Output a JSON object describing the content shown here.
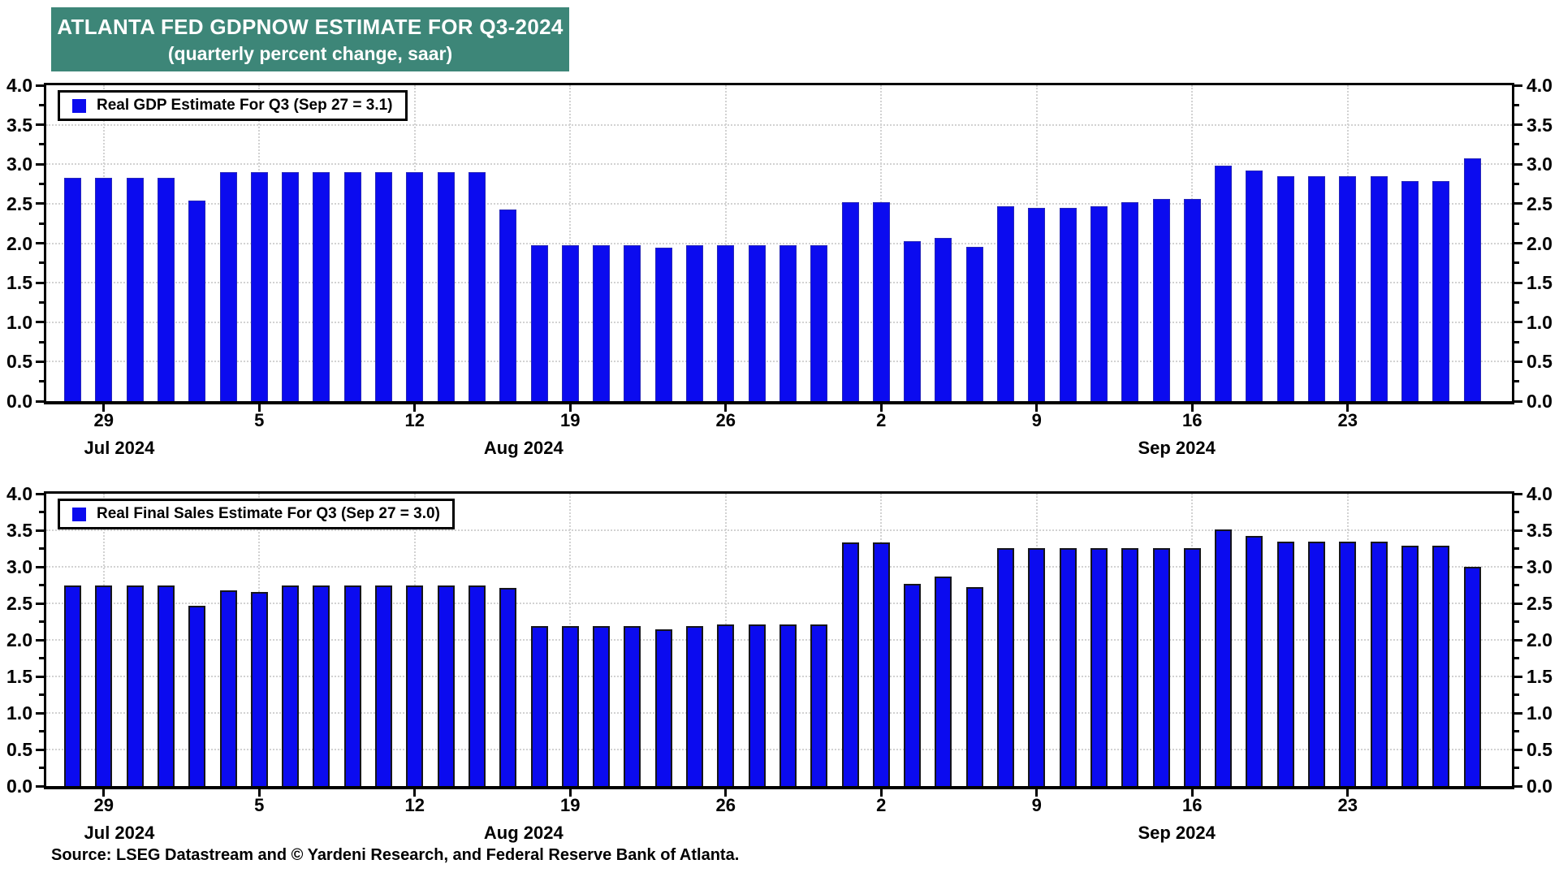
{
  "title": {
    "line1": "ATLANTA FED GDPNOW ESTIMATE FOR Q3-2024",
    "line2": "(quarterly percent change, saar)"
  },
  "source": "Source: LSEG Datastream and © Yardeni Research, and Federal Reserve Bank of Atlanta.",
  "colors": {
    "bar": "#0b0bef",
    "title_bg": "#3d8678",
    "grid": "#d2d2d2",
    "axis": "#000000"
  },
  "chart_data": [
    {
      "type": "bar",
      "title": "Real GDP Estimate For Q3 (Sep 27 = 3.1)",
      "ylim": [
        0.0,
        4.0
      ],
      "ytick_step": 0.5,
      "grid": true,
      "legend_position": "top-left",
      "y_tick_labels": [
        "0.0",
        "0.5",
        "1.0",
        "1.5",
        "2.0",
        "2.5",
        "3.0",
        "3.5",
        "4.0"
      ],
      "x_tick_labels": [
        "29",
        "5",
        "12",
        "19",
        "26",
        "2",
        "9",
        "16",
        "23"
      ],
      "x_tick_indices": [
        1,
        6,
        11,
        16,
        21,
        26,
        31,
        36,
        41
      ],
      "month_labels": [
        {
          "label": "Jul 2024",
          "start": 0,
          "end": 3
        },
        {
          "label": "Aug 2024",
          "start": 4,
          "end": 25
        },
        {
          "label": "Sep 2024",
          "start": 26,
          "end": 45
        }
      ],
      "dates": [
        "Jul 26",
        "Jul 29",
        "Jul 30",
        "Jul 31",
        "Aug 1",
        "Aug 2",
        "Aug 5",
        "Aug 6",
        "Aug 7",
        "Aug 8",
        "Aug 9",
        "Aug 12",
        "Aug 13",
        "Aug 14",
        "Aug 15",
        "Aug 16",
        "Aug 19",
        "Aug 20",
        "Aug 21",
        "Aug 22",
        "Aug 23",
        "Aug 26",
        "Aug 27",
        "Aug 28",
        "Aug 29",
        "Aug 30",
        "Sep 2",
        "Sep 3",
        "Sep 4",
        "Sep 5",
        "Sep 6",
        "Sep 9",
        "Sep 10",
        "Sep 11",
        "Sep 12",
        "Sep 13",
        "Sep 16",
        "Sep 17",
        "Sep 18",
        "Sep 19",
        "Sep 20",
        "Sep 23",
        "Sep 24",
        "Sep 25",
        "Sep 26",
        "Sep 27"
      ],
      "values": [
        2.83,
        2.83,
        2.83,
        2.83,
        2.54,
        2.9,
        2.9,
        2.9,
        2.9,
        2.9,
        2.9,
        2.9,
        2.9,
        2.9,
        2.43,
        1.97,
        1.97,
        1.97,
        1.97,
        1.94,
        1.97,
        1.97,
        1.97,
        1.97,
        1.97,
        2.52,
        2.52,
        2.03,
        2.07,
        1.95,
        2.47,
        2.45,
        2.45,
        2.47,
        2.52,
        2.56,
        2.56,
        2.98,
        2.92,
        2.85,
        2.85,
        2.85,
        2.85,
        2.79,
        2.79,
        3.07
      ]
    },
    {
      "type": "bar",
      "title": "Real Final Sales Estimate For Q3 (Sep 27 = 3.0)",
      "ylim": [
        0.0,
        4.0
      ],
      "ytick_step": 0.5,
      "grid": true,
      "legend_position": "top-left",
      "y_tick_labels": [
        "0.0",
        "0.5",
        "1.0",
        "1.5",
        "2.0",
        "2.5",
        "3.0",
        "3.5",
        "4.0"
      ],
      "x_tick_labels": [
        "29",
        "5",
        "12",
        "19",
        "26",
        "2",
        "9",
        "16",
        "23"
      ],
      "x_tick_indices": [
        1,
        6,
        11,
        16,
        21,
        26,
        31,
        36,
        41
      ],
      "month_labels": [
        {
          "label": "Jul 2024",
          "start": 0,
          "end": 3
        },
        {
          "label": "Aug 2024",
          "start": 4,
          "end": 25
        },
        {
          "label": "Sep 2024",
          "start": 26,
          "end": 45
        }
      ],
      "dates": [
        "Jul 26",
        "Jul 29",
        "Jul 30",
        "Jul 31",
        "Aug 1",
        "Aug 2",
        "Aug 5",
        "Aug 6",
        "Aug 7",
        "Aug 8",
        "Aug 9",
        "Aug 12",
        "Aug 13",
        "Aug 14",
        "Aug 15",
        "Aug 16",
        "Aug 19",
        "Aug 20",
        "Aug 21",
        "Aug 22",
        "Aug 23",
        "Aug 26",
        "Aug 27",
        "Aug 28",
        "Aug 29",
        "Aug 30",
        "Sep 2",
        "Sep 3",
        "Sep 4",
        "Sep 5",
        "Sep 6",
        "Sep 9",
        "Sep 10",
        "Sep 11",
        "Sep 12",
        "Sep 13",
        "Sep 16",
        "Sep 17",
        "Sep 18",
        "Sep 19",
        "Sep 20",
        "Sep 23",
        "Sep 24",
        "Sep 25",
        "Sep 26",
        "Sep 27"
      ],
      "values": [
        2.75,
        2.75,
        2.75,
        2.75,
        2.47,
        2.68,
        2.66,
        2.75,
        2.75,
        2.75,
        2.75,
        2.75,
        2.75,
        2.74,
        2.71,
        2.19,
        2.19,
        2.19,
        2.19,
        2.15,
        2.19,
        2.21,
        2.21,
        2.21,
        2.21,
        3.33,
        3.33,
        2.77,
        2.87,
        2.72,
        3.26,
        3.26,
        3.26,
        3.26,
        3.26,
        3.26,
        3.26,
        3.51,
        3.42,
        3.35,
        3.35,
        3.35,
        3.35,
        3.29,
        3.29,
        3.0
      ]
    }
  ]
}
